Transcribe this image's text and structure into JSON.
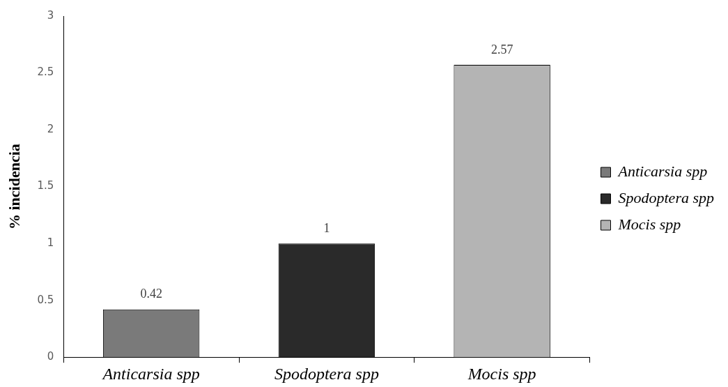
{
  "chart_data": {
    "type": "bar",
    "ylabel": "% incidencia",
    "categories": [
      "Anticarsia spp",
      "Spodoptera spp",
      "Mocis spp"
    ],
    "series": [
      {
        "name": "Anticarsia spp",
        "color": "#7a7a7a",
        "values": [
          0.42,
          null,
          null
        ]
      },
      {
        "name": "Spodoptera spp",
        "color": "#2a2a2a",
        "values": [
          null,
          1,
          null
        ]
      },
      {
        "name": "Mocis spp",
        "color": "#b4b4b4",
        "values": [
          null,
          null,
          2.57
        ]
      }
    ],
    "ylim": [
      0,
      3
    ],
    "yticks": [
      0,
      0.5,
      1,
      1.5,
      2,
      2.5,
      3
    ],
    "grid": false,
    "legend": "right",
    "data_labels": true
  }
}
